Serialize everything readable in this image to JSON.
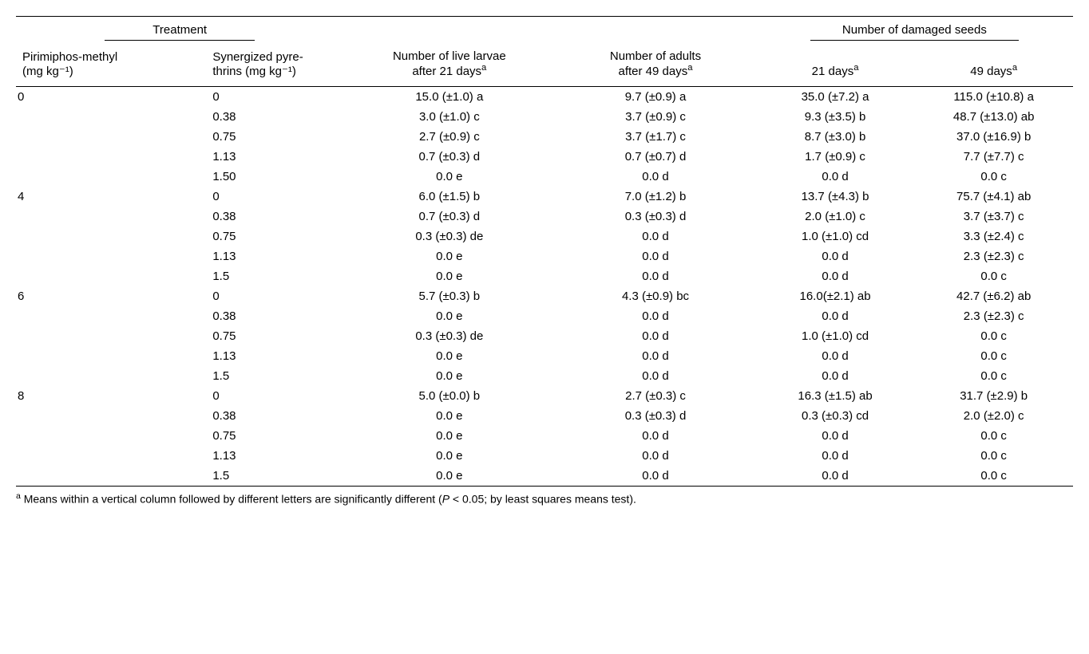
{
  "headers": {
    "treatment": "Treatment",
    "damaged": "Number of damaged seeds",
    "pm_label_1": "Pirimiphos-methyl",
    "pm_label_2": "(mg kg⁻¹)",
    "sp_label_1": "Synergized pyre-",
    "sp_label_2": "thrins (mg kg⁻¹)",
    "larvae_1": "Number of live larvae",
    "larvae_2": "after 21 days",
    "adults_1": "Number of adults",
    "adults_2": "after 49 days",
    "d21": "21 days",
    "d49": "49 days",
    "sup_a": "a"
  },
  "rows": [
    {
      "pm": "0",
      "sp": "0",
      "larvae": "15.0 (±1.0) a",
      "adults": "9.7 (±0.9) a",
      "d21": "35.0 (±7.2) a",
      "d49": "115.0 (±10.8) a"
    },
    {
      "pm": "",
      "sp": "0.38",
      "larvae": "3.0 (±1.0) c",
      "adults": "3.7 (±0.9) c",
      "d21": "9.3 (±3.5) b",
      "d49": "48.7 (±13.0) ab"
    },
    {
      "pm": "",
      "sp": "0.75",
      "larvae": "2.7 (±0.9) c",
      "adults": "3.7 (±1.7) c",
      "d21": "8.7 (±3.0) b",
      "d49": "37.0 (±16.9) b"
    },
    {
      "pm": "",
      "sp": "1.13",
      "larvae": "0.7 (±0.3) d",
      "adults": "0.7 (±0.7) d",
      "d21": "1.7 (±0.9) c",
      "d49": "7.7 (±7.7) c"
    },
    {
      "pm": "",
      "sp": "1.50",
      "larvae": "0.0 e",
      "adults": "0.0 d",
      "d21": "0.0 d",
      "d49": "0.0 c"
    },
    {
      "pm": "4",
      "sp": "0",
      "larvae": "6.0 (±1.5) b",
      "adults": "7.0 (±1.2) b",
      "d21": "13.7 (±4.3) b",
      "d49": "75.7 (±4.1) ab"
    },
    {
      "pm": "",
      "sp": "0.38",
      "larvae": "0.7 (±0.3) d",
      "adults": "0.3 (±0.3) d",
      "d21": "2.0 (±1.0) c",
      "d49": "3.7 (±3.7) c"
    },
    {
      "pm": "",
      "sp": "0.75",
      "larvae": "0.3 (±0.3) de",
      "adults": "0.0 d",
      "d21": "1.0 (±1.0) cd",
      "d49": "3.3 (±2.4) c"
    },
    {
      "pm": "",
      "sp": "1.13",
      "larvae": "0.0 e",
      "adults": "0.0 d",
      "d21": "0.0 d",
      "d49": "2.3 (±2.3) c"
    },
    {
      "pm": "",
      "sp": "1.5",
      "larvae": "0.0 e",
      "adults": "0.0 d",
      "d21": "0.0 d",
      "d49": "0.0 c"
    },
    {
      "pm": "6",
      "sp": "0",
      "larvae": "5.7 (±0.3) b",
      "adults": "4.3 (±0.9) bc",
      "d21": "16.0(±2.1) ab",
      "d49": "42.7 (±6.2) ab"
    },
    {
      "pm": "",
      "sp": "0.38",
      "larvae": "0.0 e",
      "adults": "0.0 d",
      "d21": "0.0 d",
      "d49": "2.3 (±2.3) c"
    },
    {
      "pm": "",
      "sp": "0.75",
      "larvae": "0.3 (±0.3) de",
      "adults": "0.0 d",
      "d21": "1.0 (±1.0) cd",
      "d49": "0.0 c"
    },
    {
      "pm": "",
      "sp": "1.13",
      "larvae": "0.0 e",
      "adults": "0.0 d",
      "d21": "0.0 d",
      "d49": "0.0 c"
    },
    {
      "pm": "",
      "sp": "1.5",
      "larvae": "0.0 e",
      "adults": "0.0 d",
      "d21": "0.0 d",
      "d49": "0.0 c"
    },
    {
      "pm": "8",
      "sp": "0",
      "larvae": "5.0 (±0.0) b",
      "adults": "2.7 (±0.3) c",
      "d21": "16.3 (±1.5) ab",
      "d49": "31.7 (±2.9) b"
    },
    {
      "pm": "",
      "sp": "0.38",
      "larvae": "0.0 e",
      "adults": "0.3 (±0.3) d",
      "d21": "0.3 (±0.3) cd",
      "d49": "2.0 (±2.0) c"
    },
    {
      "pm": "",
      "sp": "0.75",
      "larvae": "0.0 e",
      "adults": "0.0 d",
      "d21": "0.0 d",
      "d49": "0.0 c"
    },
    {
      "pm": "",
      "sp": "1.13",
      "larvae": "0.0 e",
      "adults": "0.0 d",
      "d21": "0.0 d",
      "d49": "0.0 c"
    },
    {
      "pm": "",
      "sp": "1.5",
      "larvae": "0.0 e",
      "adults": "0.0 d",
      "d21": "0.0 d",
      "d49": "0.0 c"
    }
  ],
  "footnote_sup": "a",
  "footnote_text": " Means within a vertical column followed by different letters are significantly different (",
  "footnote_p": "P",
  "footnote_rest": " < 0.05; by least squares means test)."
}
